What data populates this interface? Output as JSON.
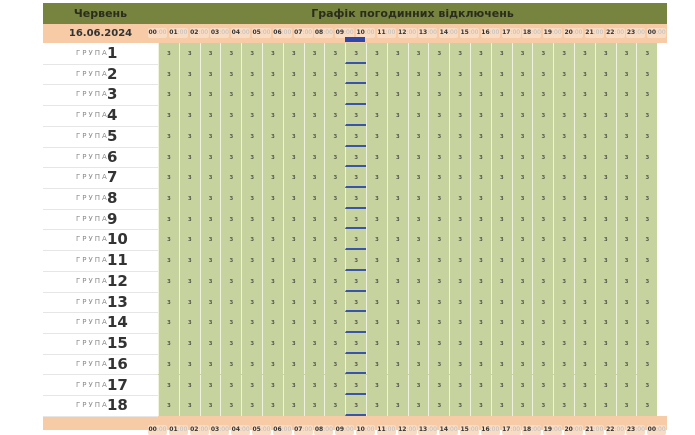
{
  "header": {
    "month": "Червень",
    "title": "Графік погодинних відключень",
    "date": "16.06.2024"
  },
  "hours": [
    "00",
    "01",
    "02",
    "03",
    "04",
    "05",
    "06",
    "07",
    "08",
    "09",
    "10",
    "11",
    "12",
    "13",
    "14",
    "15",
    "16",
    "17",
    "18",
    "19",
    "20",
    "21",
    "22",
    "23",
    "00"
  ],
  "minutes": ":00",
  "group_label": "ГРУПА",
  "groups": [
    "1",
    "2",
    "3",
    "4",
    "5",
    "6",
    "7",
    "8",
    "9",
    "10",
    "11",
    "12",
    "13",
    "14",
    "15",
    "16",
    "17",
    "18"
  ],
  "cell_value": "з",
  "current_hour_index": 9,
  "colors": {
    "header": "#76843f",
    "date_row": "#f6cba5",
    "cells": "#c7d39f",
    "current": "#3a55a8"
  }
}
